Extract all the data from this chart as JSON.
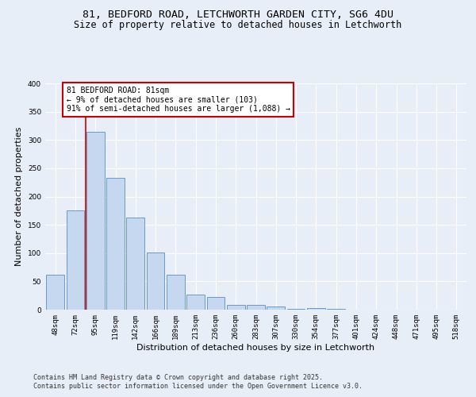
{
  "title_line1": "81, BEDFORD ROAD, LETCHWORTH GARDEN CITY, SG6 4DU",
  "title_line2": "Size of property relative to detached houses in Letchworth",
  "xlabel": "Distribution of detached houses by size in Letchworth",
  "ylabel": "Number of detached properties",
  "categories": [
    "48sqm",
    "72sqm",
    "95sqm",
    "119sqm",
    "142sqm",
    "166sqm",
    "189sqm",
    "213sqm",
    "236sqm",
    "260sqm",
    "283sqm",
    "307sqm",
    "330sqm",
    "354sqm",
    "377sqm",
    "401sqm",
    "424sqm",
    "448sqm",
    "471sqm",
    "495sqm",
    "518sqm"
  ],
  "values": [
    62,
    175,
    315,
    233,
    163,
    101,
    62,
    26,
    22,
    9,
    9,
    5,
    2,
    3,
    1,
    0,
    0,
    0,
    0,
    0,
    0
  ],
  "bar_color": "#c5d8f0",
  "bar_edge_color": "#5a8fc0",
  "vline_x_index": 1.5,
  "vline_color": "#cc0000",
  "annotation_text": "81 BEDFORD ROAD: 81sqm\n← 9% of detached houses are smaller (103)\n91% of semi-detached houses are larger (1,088) →",
  "annotation_box_color": "#ffffff",
  "annotation_box_edge": "#cc0000",
  "ylim": [
    0,
    400
  ],
  "yticks": [
    0,
    50,
    100,
    150,
    200,
    250,
    300,
    350,
    400
  ],
  "footer_line1": "Contains HM Land Registry data © Crown copyright and database right 2025.",
  "footer_line2": "Contains public sector information licensed under the Open Government Licence v3.0.",
  "bg_color": "#e8eef8",
  "plot_bg_color": "#e8eef8",
  "grid_color": "#ffffff",
  "title_fontsize": 9.5,
  "subtitle_fontsize": 8.5,
  "label_fontsize": 8,
  "tick_fontsize": 6.5,
  "annot_fontsize": 7,
  "footer_fontsize": 6
}
